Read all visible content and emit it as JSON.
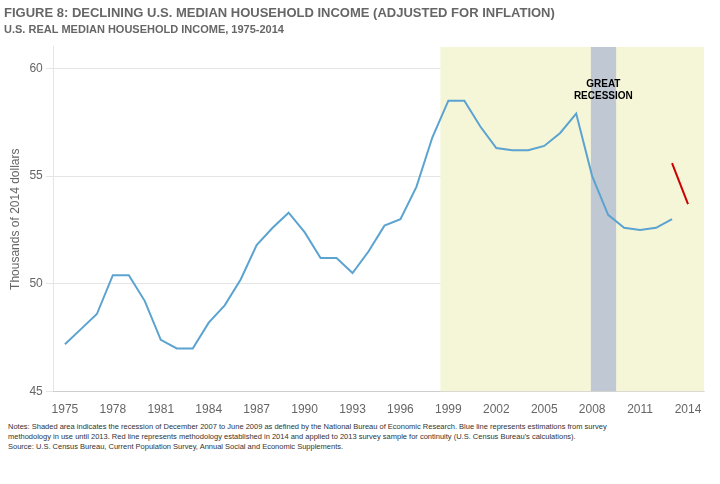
{
  "chart_data": {
    "type": "line",
    "title": "FIGURE 8: DECLINING U.S. MEDIAN HOUSEHOLD INCOME (ADJUSTED FOR INFLATION)",
    "subtitle": "U.S. REAL MEDIAN HOUSEHOLD INCOME, 1975-2014",
    "ylabel": "Thousands of 2014 dollars",
    "notes": "Notes: Shaded area indicates the recession of December 2007 to June 2009 as defined by the National Bureau of Economic Research. Blue line represents estimations from survey\nmethodology in use until 2013. Red line represents methodology established in 2014 and applied to 2013 survey sample for continuity (U.S. Census Bureau’s calculations).\nSource: U.S. Census Bureau, Current Population Survey, Annual Social and Economic Supplements.",
    "xlim": [
      1974.3,
      2015.0
    ],
    "xticks": [
      1975,
      1978,
      1981,
      1984,
      1987,
      1990,
      1993,
      1996,
      1999,
      2002,
      2005,
      2008,
      2011,
      2014
    ],
    "ylim": [
      45,
      61
    ],
    "yticks": [
      45,
      50,
      55,
      60
    ],
    "grid": "y",
    "bands": [
      {
        "start": 1998.5,
        "end": 2015.0,
        "color": "#f5f5d8"
      },
      {
        "start": 2007.92,
        "end": 2009.5,
        "color": "#c0c8d4"
      }
    ],
    "annotations": [
      {
        "text": "GREAT\nRECESSION",
        "x": 2008.7,
        "y": 59.5
      }
    ],
    "series": [
      {
        "color": "#5ba3d0",
        "x": [
          1975,
          1976,
          1977,
          1978,
          1979,
          1980,
          1981,
          1982,
          1983,
          1984,
          1985,
          1986,
          1987,
          1988,
          1989,
          1990,
          1991,
          1992,
          1993,
          1994,
          1995,
          1996,
          1997,
          1998,
          1999,
          2000,
          2001,
          2002,
          2003,
          2004,
          2005,
          2006,
          2007,
          2008,
          2009,
          2010,
          2011,
          2012,
          2013
        ],
        "values": [
          47.2,
          47.9,
          48.6,
          50.4,
          50.4,
          49.2,
          47.4,
          47.0,
          47.0,
          48.2,
          49.0,
          50.2,
          51.8,
          52.6,
          53.3,
          52.4,
          51.2,
          51.2,
          50.5,
          51.5,
          52.7,
          53.0,
          54.5,
          56.8,
          58.5,
          58.5,
          57.3,
          56.3,
          56.2,
          56.2,
          56.4,
          57.0,
          57.9,
          55.0,
          53.2,
          52.6,
          52.5,
          52.6,
          53.0
        ]
      },
      {
        "color": "#cc0000",
        "x": [
          2013,
          2014
        ],
        "values": [
          55.6,
          53.7
        ]
      }
    ]
  }
}
